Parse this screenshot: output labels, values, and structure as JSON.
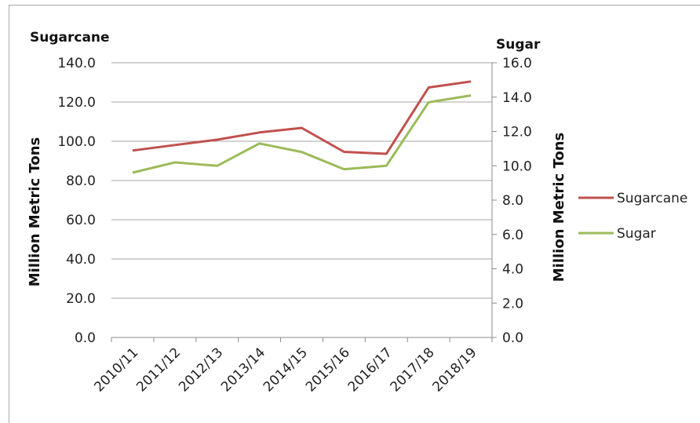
{
  "chart_data": {
    "type": "line",
    "left_title": "Sugarcane",
    "right_title": "Sugar",
    "ylabel_left": "Million Metric Tons",
    "ylabel_right": "Million Metric Tons",
    "categories": [
      "2010/11",
      "2011/12",
      "2012/13",
      "2013/14",
      "2014/15",
      "2015/16",
      "2016/17",
      "2017/18",
      "2018/19"
    ],
    "ylim_left": [
      0,
      140
    ],
    "ylim_right": [
      0,
      16
    ],
    "left_ticks": [
      "0.0",
      "20.0",
      "40.0",
      "60.0",
      "80.0",
      "100.0",
      "120.0",
      "140.0"
    ],
    "right_ticks": [
      "0.0",
      "2.0",
      "4.0",
      "6.0",
      "8.0",
      "10.0",
      "12.0",
      "14.0",
      "16.0"
    ],
    "grid": true,
    "legend_position": "right",
    "series": [
      {
        "name": "Sugarcane",
        "axis": "left",
        "color": "#c0504d",
        "values": [
          95.3,
          98.1,
          100.8,
          104.5,
          106.8,
          94.6,
          93.6,
          127.4,
          130.5
        ]
      },
      {
        "name": "Sugar",
        "axis": "right",
        "color": "#9bbb59",
        "values": [
          9.6,
          10.2,
          10.0,
          11.3,
          10.8,
          9.8,
          10.0,
          13.7,
          14.1
        ]
      }
    ]
  }
}
